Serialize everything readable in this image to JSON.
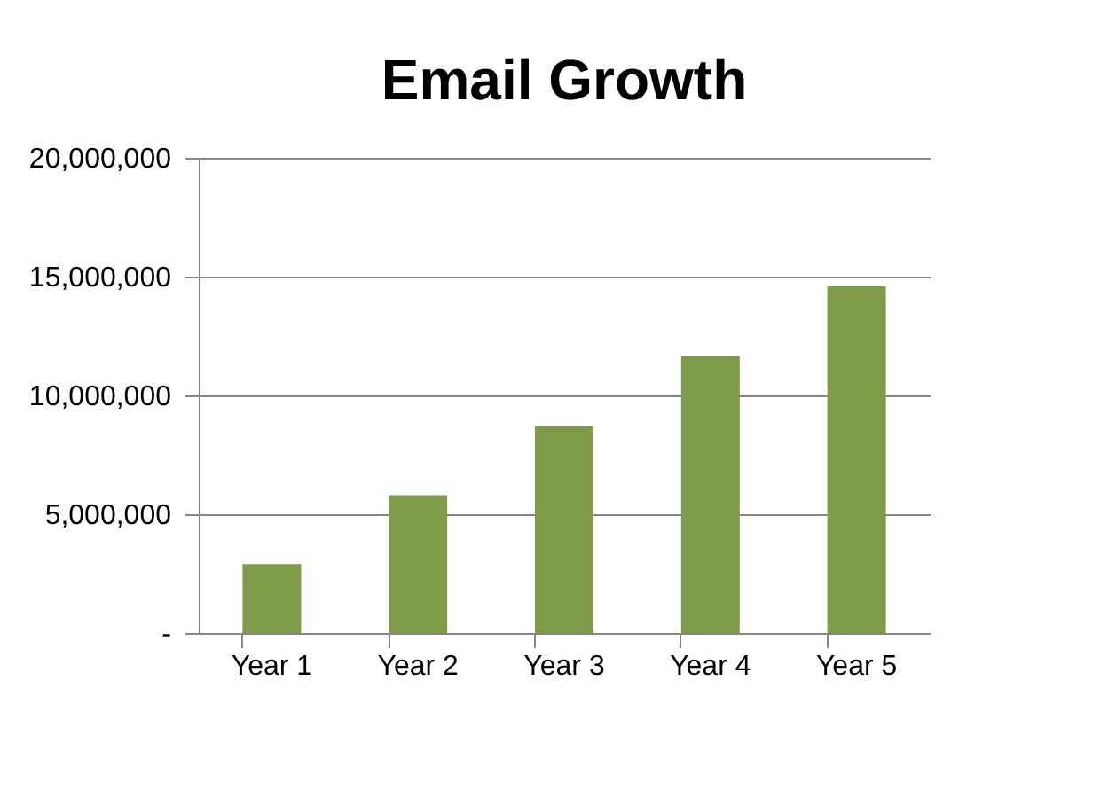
{
  "chart_data": {
    "type": "bar",
    "title": "Email Growth",
    "categories": [
      "Year 1",
      "Year 2",
      "Year 3",
      "Year 4",
      "Year 5"
    ],
    "values": [
      2900000,
      5800000,
      8700000,
      11650000,
      14600000
    ],
    "color": "#7f9a48",
    "ylim": [
      0,
      20000000
    ],
    "yticks": [
      {
        "value": 0,
        "label": "-"
      },
      {
        "value": 5000000,
        "label": "5,000,000"
      },
      {
        "value": 10000000,
        "label": "10,000,000"
      },
      {
        "value": 15000000,
        "label": "15,000,000"
      },
      {
        "value": 20000000,
        "label": "20,000,000"
      }
    ],
    "grid": "y"
  }
}
